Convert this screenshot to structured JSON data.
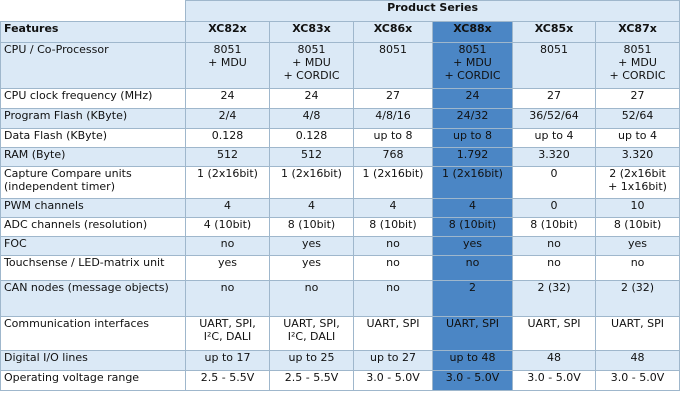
{
  "header": {
    "group_title": "Product Series",
    "features_label": "Features",
    "products": [
      "XC82x",
      "XC83x",
      "XC86x",
      "XC88x",
      "XC85x",
      "XC87x"
    ],
    "highlight_product": "XC88x",
    "highlight_color": "#4b86c5",
    "band_color": "#dbe9f6"
  },
  "rows": [
    {
      "feature": "CPU / Co-Processor",
      "values": [
        [
          "8051",
          "+ MDU"
        ],
        [
          "8051",
          "+ MDU",
          "+ CORDIC"
        ],
        [
          "8051"
        ],
        [
          "8051",
          "+ MDU",
          "+ CORDIC"
        ],
        [
          "8051"
        ],
        [
          "8051",
          "+ MDU",
          "+ CORDIC"
        ]
      ]
    },
    {
      "feature": "CPU clock frequency (MHz)",
      "values": [
        [
          "24"
        ],
        [
          "24"
        ],
        [
          "27"
        ],
        [
          "24"
        ],
        [
          "27"
        ],
        [
          "27"
        ]
      ]
    },
    {
      "feature": "Program Flash (KByte)",
      "values": [
        [
          "2/4"
        ],
        [
          "4/8"
        ],
        [
          "4/8/16"
        ],
        [
          "24/32"
        ],
        [
          "36/52/64"
        ],
        [
          "52/64"
        ]
      ]
    },
    {
      "feature": "Data Flash (KByte)",
      "values": [
        [
          "0.128"
        ],
        [
          "0.128"
        ],
        [
          "up to 8"
        ],
        [
          "up to 8"
        ],
        [
          "up to 4"
        ],
        [
          "up to 4"
        ]
      ]
    },
    {
      "feature": "RAM (Byte)",
      "values": [
        [
          "512"
        ],
        [
          "512"
        ],
        [
          "768"
        ],
        [
          "1.792"
        ],
        [
          "3.320"
        ],
        [
          "3.320"
        ]
      ]
    },
    {
      "feature": "Capture Compare units (independent timer)",
      "values": [
        [
          "1 (2x16bit)"
        ],
        [
          "1 (2x16bit)"
        ],
        [
          "1 (2x16bit)"
        ],
        [
          "1 (2x16bit)"
        ],
        [
          "0"
        ],
        [
          "2 (2x16bit",
          "+ 1x16bit)"
        ]
      ]
    },
    {
      "feature": "PWM channels",
      "values": [
        [
          "4"
        ],
        [
          "4"
        ],
        [
          "4"
        ],
        [
          "4"
        ],
        [
          "0"
        ],
        [
          "10"
        ]
      ]
    },
    {
      "feature": "ADC channels (resolution)",
      "values": [
        [
          "4 (10bit)"
        ],
        [
          "8 (10bit)"
        ],
        [
          "8 (10bit)"
        ],
        [
          "8 (10bit)"
        ],
        [
          "8 (10bit)"
        ],
        [
          "8 (10bit)"
        ]
      ]
    },
    {
      "feature": "FOC",
      "values": [
        [
          "no"
        ],
        [
          "yes"
        ],
        [
          "no"
        ],
        [
          "yes"
        ],
        [
          "no"
        ],
        [
          "yes"
        ]
      ]
    },
    {
      "feature": "Touchsense / LED-matrix unit",
      "values": [
        [
          "yes"
        ],
        [
          "yes"
        ],
        [
          "no"
        ],
        [
          "no"
        ],
        [
          "no"
        ],
        [
          "no"
        ]
      ]
    },
    {
      "feature": "CAN nodes (message objects)",
      "values": [
        [
          "no"
        ],
        [
          "no"
        ],
        [
          "no"
        ],
        [
          "2"
        ],
        [
          "2 (32)"
        ],
        [
          "2 (32)"
        ]
      ]
    },
    {
      "feature": "Communication interfaces",
      "values": [
        [
          "UART, SPI,",
          "I²C, DALI"
        ],
        [
          "UART, SPI,",
          "I²C, DALI"
        ],
        [
          "UART, SPI"
        ],
        [
          "UART, SPI"
        ],
        [
          "UART, SPI"
        ],
        [
          "UART, SPI"
        ]
      ]
    },
    {
      "feature": "Digital I/O lines",
      "values": [
        [
          "up to 17"
        ],
        [
          "up to 25"
        ],
        [
          "up to 27"
        ],
        [
          "up to 48"
        ],
        [
          "48"
        ],
        [
          "48"
        ]
      ]
    },
    {
      "feature": "Operating voltage range",
      "values": [
        [
          "2.5 - 5.5V"
        ],
        [
          "2.5 - 5.5V"
        ],
        [
          "3.0 - 5.0V"
        ],
        [
          "3.0 - 5.0V"
        ],
        [
          "3.0 - 5.0V"
        ],
        [
          "3.0 - 5.0V"
        ]
      ]
    }
  ]
}
